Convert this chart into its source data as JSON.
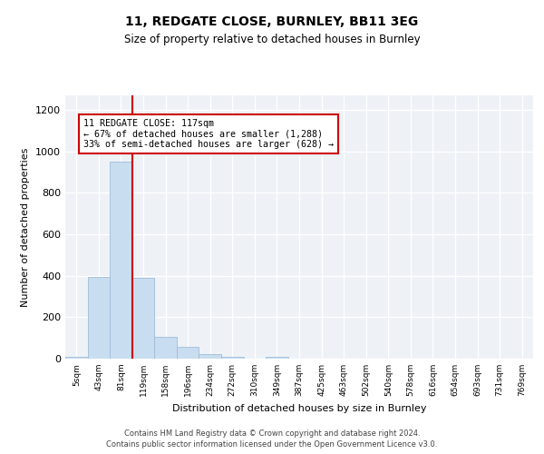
{
  "title": "11, REDGATE CLOSE, BURNLEY, BB11 3EG",
  "subtitle": "Size of property relative to detached houses in Burnley",
  "xlabel": "Distribution of detached houses by size in Burnley",
  "ylabel": "Number of detached properties",
  "bar_labels": [
    "5sqm",
    "43sqm",
    "81sqm",
    "119sqm",
    "158sqm",
    "196sqm",
    "234sqm",
    "272sqm",
    "310sqm",
    "349sqm",
    "387sqm",
    "425sqm",
    "463sqm",
    "502sqm",
    "540sqm",
    "578sqm",
    "616sqm",
    "654sqm",
    "693sqm",
    "731sqm",
    "769sqm"
  ],
  "bar_heights": [
    10,
    395,
    950,
    390,
    105,
    55,
    20,
    10,
    0,
    10,
    0,
    0,
    0,
    0,
    0,
    0,
    0,
    0,
    0,
    0,
    0
  ],
  "bar_color": "#c9ddf0",
  "bar_edgecolor": "#a0bcd8",
  "vline_x": 2.5,
  "vline_color": "#cc0000",
  "annotation_line1": "11 REDGATE CLOSE: 117sqm",
  "annotation_line2": "← 67% of detached houses are smaller (1,288)",
  "annotation_line3": "33% of semi-detached houses are larger (628) →",
  "annotation_box_edgecolor": "#cc0000",
  "ylim": [
    0,
    1270
  ],
  "yticks": [
    0,
    200,
    400,
    600,
    800,
    1000,
    1200
  ],
  "bg_color": "#eef2f7",
  "footer_line1": "Contains HM Land Registry data © Crown copyright and database right 2024.",
  "footer_line2": "Contains public sector information licensed under the Open Government Licence v3.0."
}
